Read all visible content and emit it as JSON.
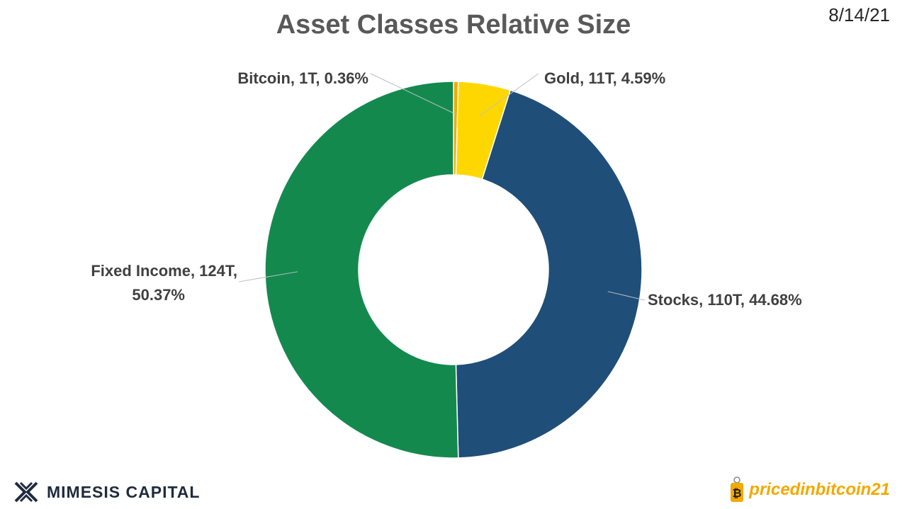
{
  "chart_data": {
    "type": "pie",
    "variant": "donut",
    "title": "Asset Classes Relative Size",
    "date": "8/14/21",
    "slices": [
      {
        "name": "Bitcoin",
        "value": 1,
        "percent": 0.36,
        "label": "Bitcoin, 1T, 0.36%",
        "color": "#f2a900"
      },
      {
        "name": "Gold",
        "value": 11,
        "percent": 4.59,
        "label": "Gold, 11T, 4.59%",
        "color": "#ffd700"
      },
      {
        "name": "Stocks",
        "value": 110,
        "percent": 44.68,
        "label": "Stocks, 110T, 44.68%",
        "color": "#1f4e79"
      },
      {
        "name": "Fixed Income",
        "value": 124,
        "percent": 50.37,
        "label_lines": [
          "Fixed Income, 124T,",
          "50.37%"
        ],
        "color": "#14894e"
      }
    ],
    "start_angle_deg": 0,
    "direction": "clockwise"
  },
  "branding": {
    "left_text": "MIMESIS CAPITAL",
    "left_icon": "mimesis-logo-icon",
    "right_text": "pricedinbitcoin21",
    "right_icon": "bitcoin-tag-icon"
  }
}
